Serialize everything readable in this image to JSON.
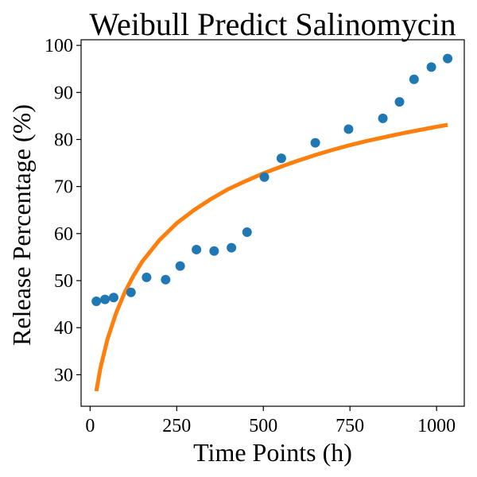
{
  "chart_data": {
    "type": "scatter",
    "title": "Weibull Predict Salinomycin",
    "xlabel": "Time Points (h)",
    "ylabel": "Release Percentage (%)",
    "xlim": [
      -26,
      1080
    ],
    "ylim": [
      23.3,
      101.2
    ],
    "xticks": [
      0,
      250,
      500,
      750,
      1000
    ],
    "yticks": [
      30,
      40,
      50,
      60,
      70,
      80,
      90,
      100
    ],
    "grid": false,
    "series": [
      {
        "kind": "scatter",
        "color": "#1f77b4",
        "x": [
          18,
          43,
          68,
          118,
          163,
          218,
          260,
          307,
          358,
          408,
          453,
          503,
          552,
          650,
          746,
          845,
          893,
          935,
          985,
          1032
        ],
        "y": [
          45.6,
          46.0,
          46.4,
          47.5,
          50.7,
          50.2,
          53.1,
          56.6,
          56.3,
          57.0,
          60.3,
          72.0,
          76.0,
          79.3,
          82.2,
          84.5,
          88.0,
          92.8,
          95.4,
          97.2
        ]
      },
      {
        "kind": "line",
        "color": "#ff7f0e",
        "x": [
          18,
          30,
          50,
          75,
          100,
          125,
          150,
          200,
          250,
          300,
          350,
          400,
          450,
          500,
          550,
          600,
          650,
          700,
          750,
          800,
          850,
          900,
          950,
          1000,
          1032
        ],
        "y": [
          26.5,
          31.5,
          37.5,
          43.1,
          47.5,
          51.0,
          54.0,
          58.6,
          62.2,
          65.0,
          67.4,
          69.5,
          71.2,
          72.8,
          74.2,
          75.5,
          76.7,
          77.8,
          78.8,
          79.7,
          80.5,
          81.3,
          82.0,
          82.7,
          83.1
        ]
      }
    ]
  }
}
